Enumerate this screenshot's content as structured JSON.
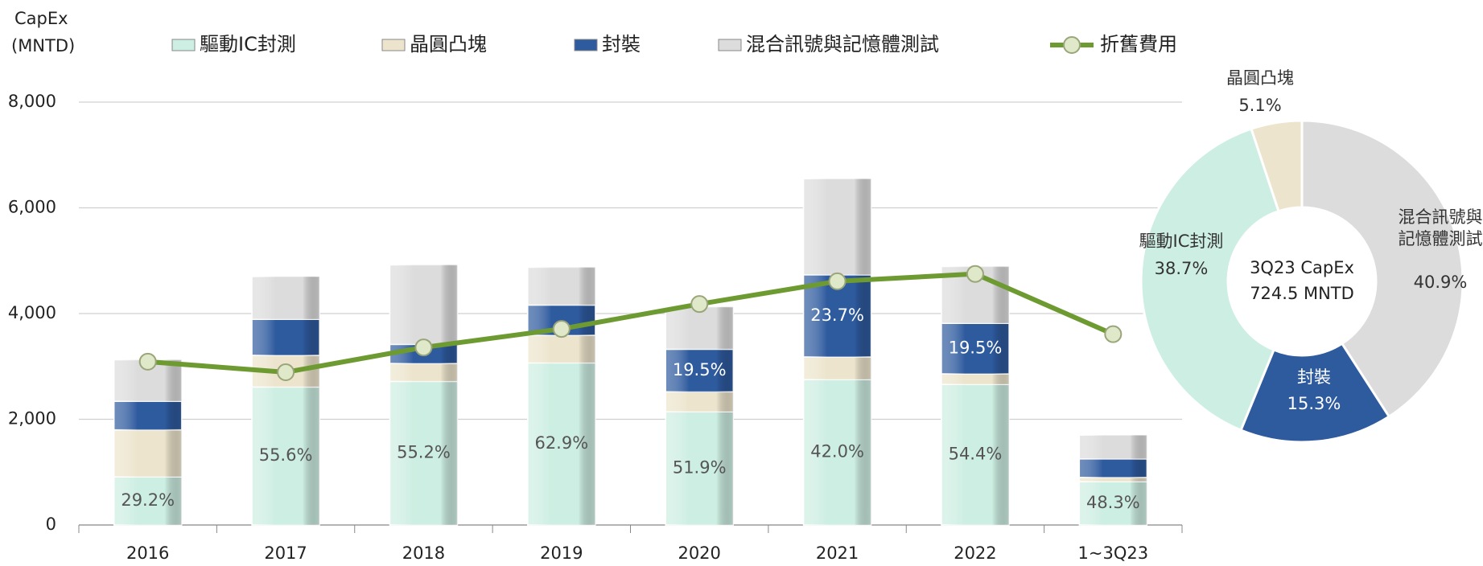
{
  "chart_data": [
    {
      "type": "bar",
      "stacked": true,
      "y_label": [
        "CapEx",
        "(MNTD)"
      ],
      "categories": [
        "2016",
        "2017",
        "2018",
        "2019",
        "2020",
        "2021",
        "2022",
        "1~3Q23"
      ],
      "series": [
        {
          "name": "驅動IC封測",
          "color": "#cdeee2",
          "values": [
            910,
            2610,
            2716,
            3066,
            2141,
            2751,
            2660,
            821
          ],
          "share_labels": [
            "29.2%",
            "55.6%",
            "55.2%",
            "62.9%",
            "51.9%",
            "42.0%",
            "54.4%",
            "48.3%"
          ]
        },
        {
          "name": "晶圓凸塊",
          "color": "#ece4cc",
          "values": [
            890,
            600,
            340,
            524,
            379,
            429,
            200,
            80
          ],
          "share_labels": [
            null,
            null,
            null,
            null,
            null,
            null,
            null,
            null
          ]
        },
        {
          "name": "封裝",
          "color": "#2e5a9e",
          "values": [
            540,
            680,
            360,
            570,
            804,
            1552,
            954,
            349
          ],
          "share_labels": [
            null,
            null,
            null,
            null,
            "19.5%",
            "23.7%",
            "19.5%",
            null
          ]
        },
        {
          "name": "混合訊號與記憶體測試",
          "color": "#dcdcdc",
          "values": [
            785,
            810,
            1504,
            715,
            801,
            1818,
            1076,
            450
          ],
          "share_labels": [
            null,
            null,
            null,
            null,
            null,
            null,
            null,
            null
          ]
        },
        {
          "name": "折舊費用",
          "type": "line",
          "color": "#6e9a32",
          "values": [
            3090,
            2890,
            3360,
            3710,
            4180,
            4610,
            4750,
            3610
          ]
        }
      ],
      "ylim": [
        0,
        8000
      ],
      "yticks": [
        0,
        {
          "value": 2000,
          "label": "2,000"
        },
        {
          "value": 4000,
          "label": "4,000"
        },
        {
          "value": 6000,
          "label": "6,000"
        },
        {
          "value": 8000,
          "label": "8,000"
        }
      ],
      "grid": true
    },
    {
      "type": "donut",
      "center_label": [
        "3Q23 CapEx",
        "724.5 MNTD"
      ],
      "categories": [
        "混合訊號與記憶體測試",
        "封裝",
        "驅動IC封測",
        "晶圓凸塊"
      ],
      "colors": [
        "#dcdcdc",
        "#2e5a9e",
        "#cdeee2",
        "#ece4cc"
      ],
      "values": [
        40.9,
        15.3,
        38.7,
        5.1
      ],
      "value_labels": [
        "40.9%",
        "15.3%",
        "38.7%",
        "5.1%"
      ]
    }
  ]
}
